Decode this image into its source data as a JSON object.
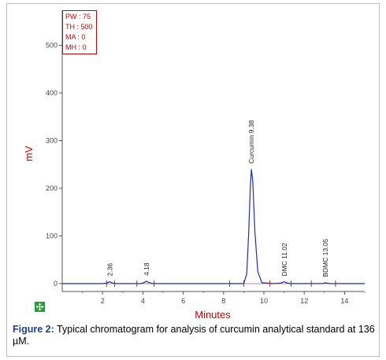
{
  "chart_data": {
    "type": "line",
    "xlabel": "Minutes",
    "ylabel": "mV",
    "xlim": [
      0,
      15
    ],
    "ylim": [
      -20,
      560
    ],
    "x_ticks": [
      "2",
      "4",
      "6",
      "8",
      "10",
      "12",
      "14"
    ],
    "y_ticks": [
      "0",
      "100",
      "200",
      "300",
      "400",
      "500"
    ],
    "series": [
      {
        "x": [
          0,
          2.0,
          2.2,
          2.3,
          2.36,
          2.45,
          2.6,
          3.9,
          4.05,
          4.18,
          4.3,
          4.5,
          9.0,
          9.15,
          9.25,
          9.33,
          9.38,
          9.45,
          9.55,
          9.7,
          9.9,
          10.5,
          10.85,
          10.95,
          11.02,
          11.1,
          11.3,
          12.9,
          13.0,
          13.05,
          13.1,
          13.3,
          15
        ],
        "y": [
          0,
          0,
          1,
          3,
          4,
          2,
          0,
          0,
          2,
          5,
          2,
          0,
          0,
          20,
          110,
          205,
          240,
          215,
          110,
          25,
          2,
          0,
          1,
          3,
          4,
          2,
          0,
          0,
          1,
          2,
          1,
          0,
          0
        ]
      }
    ],
    "peaks": [
      {
        "label": "2.36",
        "x": 2.36
      },
      {
        "label": "4.18",
        "x": 4.18
      },
      {
        "label": "Curcumin 9.38",
        "x": 9.38
      },
      {
        "label": "DMC 11.02",
        "x": 11.02
      },
      {
        "label": "BDMC 13.05",
        "x": 13.05
      }
    ],
    "event_marks_x": [
      2.2,
      2.6,
      3.7,
      4.55,
      8.3,
      9.0,
      10.3,
      11.35,
      12.35,
      13.55
    ]
  },
  "params": [
    "PW : 75",
    "TH : 500",
    "MA : 0",
    "MH : 0"
  ],
  "caption": {
    "label": "Figure 2:",
    "text": " Typical chromatogram for analysis of curcumin analytical standard at 136 µM."
  },
  "colors": {
    "trace": "#1f2bb0",
    "baseline": "#d08080",
    "event_marks": "#cc2222",
    "axis_title": "#cc0000"
  },
  "icons": {
    "expand": "expand-arrows-icon"
  }
}
